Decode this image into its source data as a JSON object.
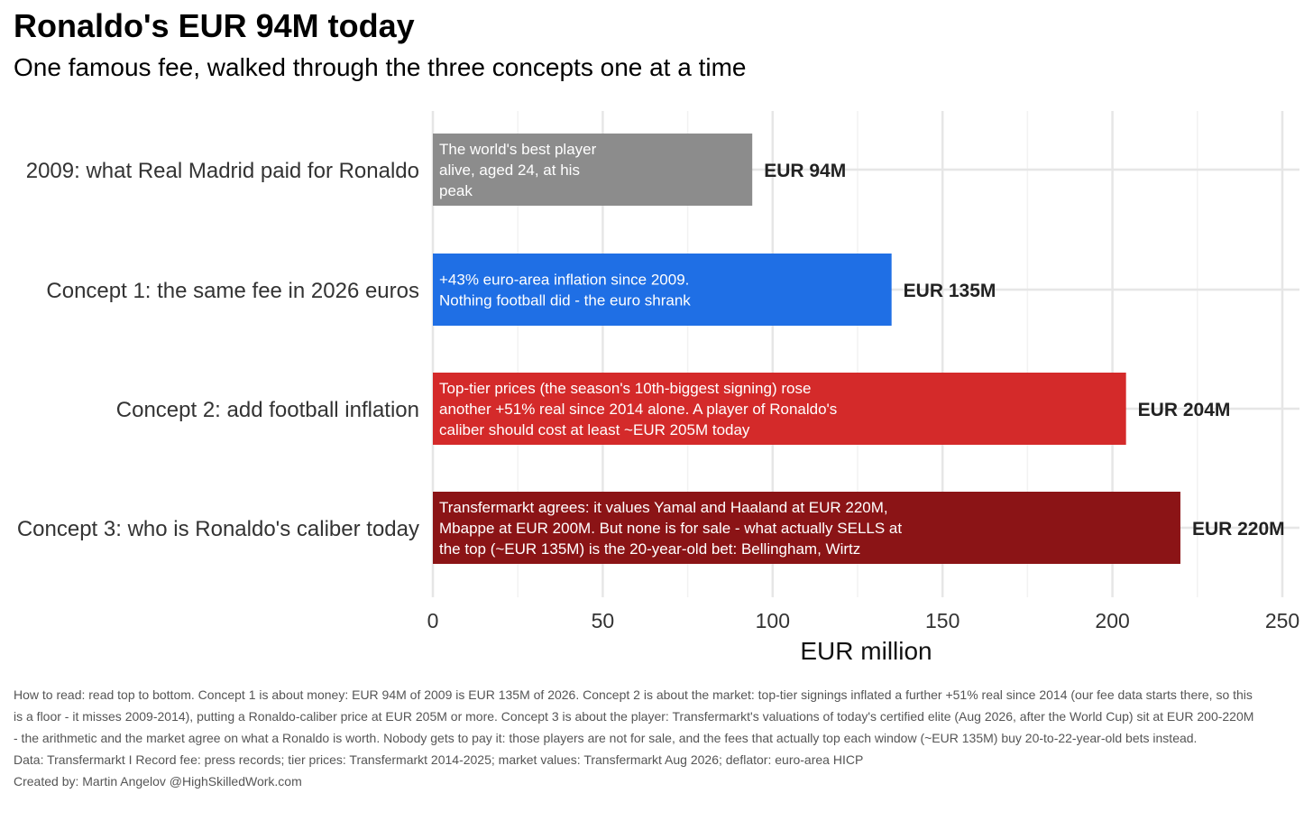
{
  "title": "Ronaldo's EUR 94M today",
  "subtitle": "One famous fee, walked through the three concepts one at a time",
  "chart_data": {
    "type": "bar",
    "orientation": "horizontal",
    "title": "Ronaldo's EUR 94M today",
    "subtitle": "One famous fee, walked through the three concepts one at a time",
    "xlabel": "EUR million",
    "ylabel": "",
    "xlim": [
      0,
      255
    ],
    "xticks": [
      0,
      50,
      100,
      150,
      200,
      250
    ],
    "grid": true,
    "categories": [
      "2009: what Real Madrid paid for Ronaldo",
      "Concept 1: the same fee in 2026 euros",
      "Concept 2: add football inflation",
      "Concept 3: who is Ronaldo's caliber today"
    ],
    "values": [
      94,
      135,
      204,
      220
    ],
    "value_labels": [
      "EUR 94M",
      "EUR 135M",
      "EUR 204M",
      "EUR 220M"
    ],
    "colors": [
      "#8c8c8c",
      "#1f6fe5",
      "#d42a2a",
      "#8b1416"
    ],
    "annotations": [
      [
        "The world's best player",
        "alive, aged 24, at his",
        "peak"
      ],
      [
        "+43% euro-area inflation since 2009.",
        "Nothing football did - the euro shrank"
      ],
      [
        "Top-tier prices (the season's 10th-biggest signing) rose",
        "another +51% real since 2014 alone. A player of Ronaldo's",
        "caliber should cost at least ~EUR 205M today"
      ],
      [
        "Transfermarkt agrees: it values Yamal and Haaland at EUR 220M,",
        "Mbappe at EUR 200M. But none is for sale - what actually SELLS at",
        "the top (~EUR 135M) is the 20-year-old bet: Bellingham, Wirtz"
      ]
    ]
  },
  "caption": {
    "how_to_read": "How to read: read top to bottom. Concept 1 is about money: EUR 94M of 2009 is EUR 135M of 2026. Concept 2 is about the market: top-tier signings inflated a further +51% real since 2014 (our fee data starts there, so this is a floor - it misses 2009-2014), putting a Ronaldo-caliber price at EUR 205M or more. Concept 3 is about the player: Transfermarkt's valuations of today's certified elite (Aug 2026, after the World Cup) sit at EUR 200-220M - the arithmetic and the market agree on what a Ronaldo is worth. Nobody gets to pay it: those players are not for sale, and the fees that actually top each window (~EUR 135M) buy 20-to-22-year-old bets instead.",
    "data": "Data: Transfermarkt I Record fee: press records; tier prices: Transfermarkt 2014-2025; market values: Transfermarkt Aug 2026; deflator: euro-area HICP",
    "credit": "Created by: Martin Angelov @HighSkilledWork.com"
  }
}
